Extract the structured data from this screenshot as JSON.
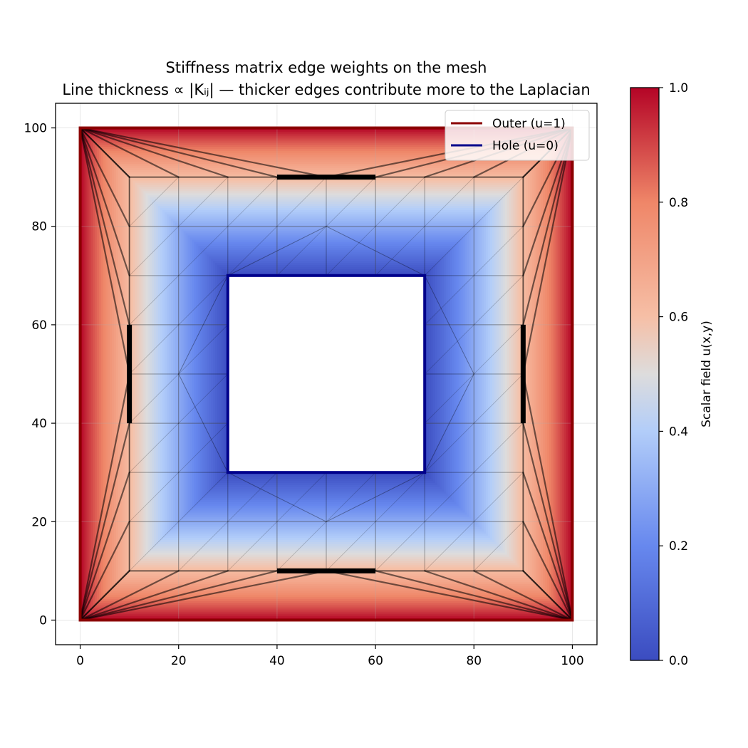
{
  "chart_data": {
    "type": "heatmap",
    "title": "Stiffness matrix edge weights on the mesh",
    "subtitle": "Line thickness ∝ |Kᵢⱼ| — thicker edges contribute more to the Laplacian",
    "xlabel": "",
    "ylabel": "",
    "xlim": [
      -5,
      105
    ],
    "ylim": [
      -5,
      105
    ],
    "x_ticks": [
      "0",
      "20",
      "40",
      "60",
      "80",
      "100"
    ],
    "y_ticks": [
      "0",
      "20",
      "40",
      "60",
      "80",
      "100"
    ],
    "grid": true,
    "legend_position": "top-right",
    "legend": [
      {
        "name": "Outer (u=1)",
        "color": "#8b0000"
      },
      {
        "name": "Hole (u=0)",
        "color": "#00008b"
      }
    ],
    "outer_boundary": {
      "x": [
        0,
        100
      ],
      "y": [
        0,
        100
      ]
    },
    "hole": {
      "x": [
        30,
        70
      ],
      "y": [
        30,
        70
      ]
    },
    "colorbar": {
      "label": "Scalar field u(x,y)",
      "range": [
        0,
        1
      ],
      "ticks": [
        "0.0",
        "0.2",
        "0.4",
        "0.6",
        "0.8",
        "1.0"
      ],
      "colormap": "coolwarm"
    },
    "thick_edges": [
      {
        "from": [
          40,
          90
        ],
        "to": [
          60,
          90
        ]
      },
      {
        "from": [
          40,
          10
        ],
        "to": [
          60,
          10
        ]
      },
      {
        "from": [
          10,
          40
        ],
        "to": [
          10,
          60
        ]
      },
      {
        "from": [
          90,
          40
        ],
        "to": [
          90,
          60
        ]
      }
    ]
  }
}
